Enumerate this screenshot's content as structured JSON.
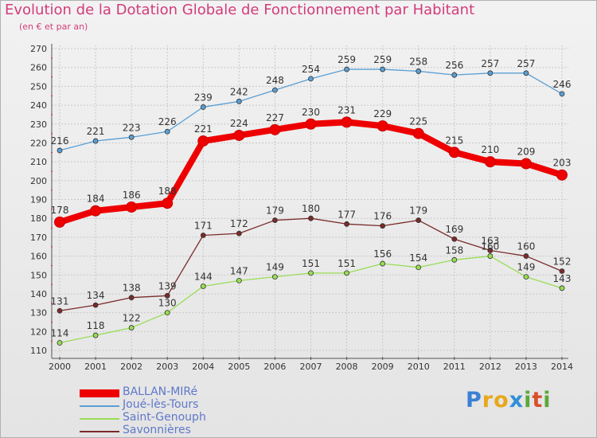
{
  "title": "Evolution de la Dotation Globale de Fonctionnement par Habitant",
  "subtitle": "(en € et par an)",
  "logo": {
    "letters": [
      "P",
      "r",
      "o",
      "x",
      "i",
      "t",
      "i"
    ],
    "colors": [
      "#3a7fd4",
      "#e8a71c",
      "#e8a71c",
      "#2f8fd8",
      "#5aa83a",
      "#d8502a",
      "#5aa83a"
    ]
  },
  "chart_data": {
    "type": "line",
    "title": "Evolution de la Dotation Globale de Fonctionnement par Habitant",
    "ylabel": "(en € et par an)",
    "xlabel": "",
    "x": [
      "2000",
      "2001",
      "2002",
      "2003",
      "2004",
      "2005",
      "2006",
      "2007",
      "2008",
      "2009",
      "2010",
      "2011",
      "2012",
      "2013",
      "2014"
    ],
    "ylim": [
      110,
      270
    ],
    "yticks": [
      "110",
      "120",
      "130",
      "140",
      "150",
      "160",
      "170",
      "180",
      "190",
      "200",
      "210",
      "220",
      "230",
      "240",
      "250",
      "260",
      "270"
    ],
    "grid": true,
    "series": [
      {
        "name": "BALLAN-MIRé",
        "color": "#ee0000",
        "values": [
          178,
          184,
          186,
          188,
          221,
          224,
          227,
          230,
          231,
          229,
          225,
          215,
          210,
          209,
          203
        ],
        "labels": [
          "178",
          "184",
          "186",
          "188",
          "221",
          "224",
          "227",
          "230",
          "231",
          "229",
          "225",
          "215",
          "210",
          "209",
          "203"
        ]
      },
      {
        "name": "Joué-lès-Tours",
        "color": "#5a9fd4",
        "values": [
          216,
          221,
          223,
          226,
          239,
          242,
          248,
          254,
          259,
          259,
          258,
          256,
          257,
          257,
          246
        ],
        "labels": [
          "216",
          "221",
          "223",
          "226",
          "239",
          "242",
          "248",
          "254",
          "259",
          "259",
          "258",
          "256",
          "257",
          "257",
          "246"
        ]
      },
      {
        "name": "Saint-Genouph",
        "color": "#99dd55",
        "values": [
          114,
          118,
          122,
          130,
          144,
          147,
          149,
          151,
          151,
          156,
          154,
          158,
          160,
          149,
          143
        ],
        "labels": [
          "114",
          "118",
          "122",
          "130",
          "144",
          "147",
          "149",
          "151",
          "151",
          "156",
          "154",
          "158",
          "160",
          "149",
          "143"
        ]
      },
      {
        "name": "Savonnières",
        "color": "#7a2a2a",
        "values": [
          131,
          134,
          138,
          139,
          171,
          172,
          179,
          180,
          177,
          176,
          179,
          169,
          163,
          160,
          152
        ],
        "labels": [
          "131",
          "134",
          "138",
          "139",
          "171",
          "172",
          "179",
          "180",
          "177",
          "176",
          "179",
          "169",
          "163",
          "160",
          "152"
        ]
      }
    ],
    "legend": "bottom-left"
  }
}
